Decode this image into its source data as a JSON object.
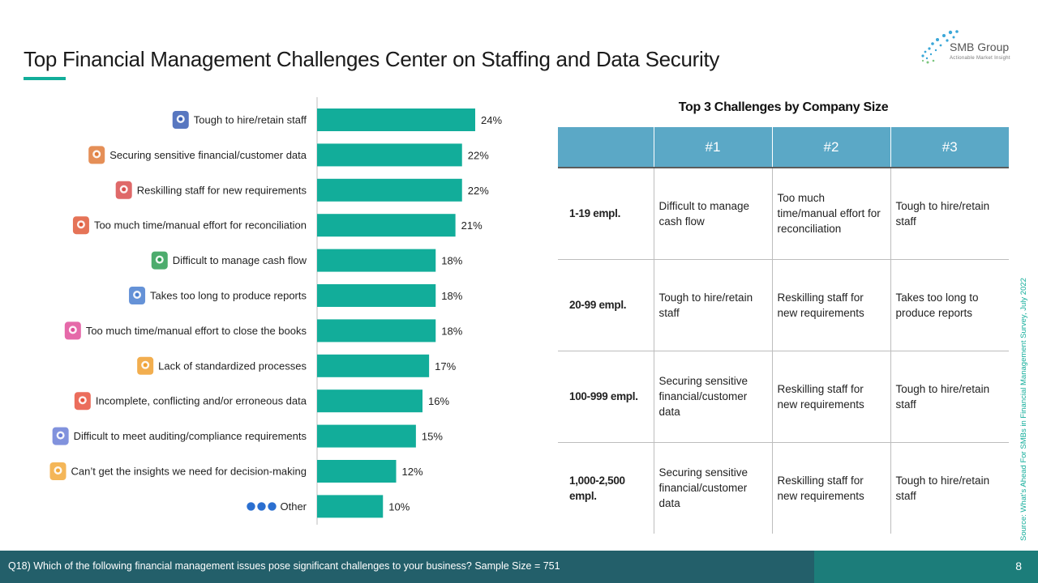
{
  "title": "Top Financial Management Challenges Center on Staffing and Data Security",
  "logo": {
    "name": "SMB Group",
    "tagline": "Actionable Market Insight"
  },
  "colors": {
    "bar": "#12ad9a",
    "table_header": "#5ba8c6",
    "footer": "#235f6a",
    "accent": "#12ad9a"
  },
  "chart_data": {
    "type": "bar",
    "orientation": "horizontal",
    "categories": [
      "Tough to hire/retain staff",
      "Securing sensitive financial/customer data",
      "Reskilling staff for new requirements",
      "Too much time/manual effort for reconciliation",
      "Difficult to manage cash flow",
      "Takes too long to produce reports",
      "Too much time/manual effort to close the books",
      "Lack of standardized processes",
      "Incomplete, conflicting and/or erroneous data",
      "Difficult to meet auditing/compliance requirements",
      "Can’t get the insights we need for decision-making",
      "Other"
    ],
    "values": [
      24,
      22,
      22,
      21,
      18,
      18,
      18,
      17,
      16,
      15,
      12,
      10
    ],
    "value_labels": [
      "24%",
      "22%",
      "22%",
      "21%",
      "18%",
      "18%",
      "18%",
      "17%",
      "16%",
      "15%",
      "12%",
      "10%"
    ],
    "icons": [
      "search-staff-icon",
      "people-hand-icon",
      "person-network-icon",
      "stopwatch-icon",
      "cash-icon",
      "report-icon",
      "book-icon",
      "gear-cycle-icon",
      "puzzle-icon",
      "checklist-icon",
      "insights-icon",
      "dots-icon"
    ],
    "xlim": [
      0,
      30
    ],
    "grid": false,
    "legend": "none"
  },
  "table": {
    "title": "Top 3 Challenges by Company Size",
    "headers": [
      "",
      "#1",
      "#2",
      "#3"
    ],
    "rows": [
      {
        "size": "1-19 empl.",
        "c1": "Difficult to manage cash flow",
        "c2": "Too much time/manual effort for reconciliation",
        "c3": "Tough to hire/retain staff"
      },
      {
        "size": "20-99 empl.",
        "c1": "Tough to hire/retain staff",
        "c2": "Reskilling staff for new requirements",
        "c3": "Takes too long to produce reports"
      },
      {
        "size": "100-999 empl.",
        "c1": "Securing sensitive financial/customer data",
        "c2": "Reskilling staff for new requirements",
        "c3": "Tough to hire/retain staff"
      },
      {
        "size": "1,000-2,500 empl.",
        "c1": "Securing sensitive financial/customer data",
        "c2": "Reskilling staff for new requirements",
        "c3": "Tough to hire/retain staff"
      }
    ]
  },
  "source": "Source: What’s Ahead For SMBs in Financial Management Survey, July 2022",
  "footer": {
    "question": "Q18) Which of the following financial management issues pose significant challenges to your business?  Sample Size = 751",
    "page": "8"
  }
}
